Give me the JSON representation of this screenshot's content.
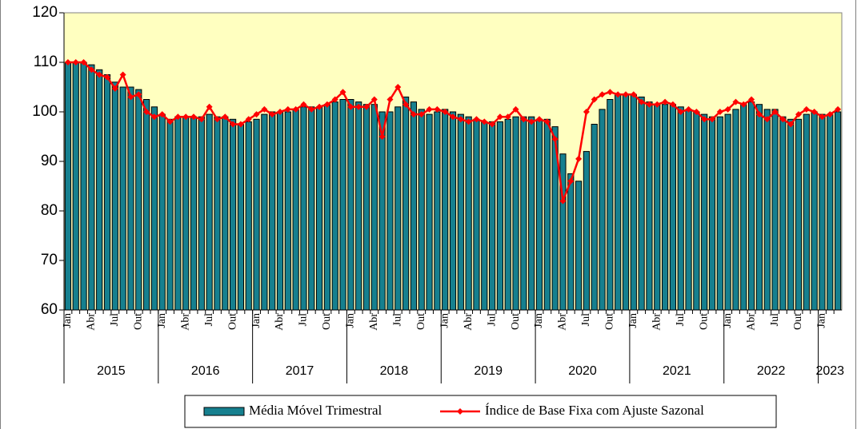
{
  "chart_data": {
    "type": "bar",
    "categories": [
      "Jan",
      null,
      null,
      "Abr",
      null,
      null,
      "Jul",
      null,
      null,
      "Out",
      null,
      null,
      "Jan",
      null,
      null,
      "Abr",
      null,
      null,
      "Jul",
      null,
      null,
      "Out",
      null,
      null,
      "Jan",
      null,
      null,
      "Abr",
      null,
      null,
      "Jul",
      null,
      null,
      "Out",
      null,
      null,
      "Jan",
      null,
      null,
      "Abr",
      null,
      null,
      "Jul",
      null,
      null,
      "Out",
      null,
      null,
      "Jan",
      null,
      null,
      "Abr",
      null,
      null,
      "Jul",
      null,
      null,
      "Out",
      null,
      null,
      "Jan",
      null,
      null,
      "Abr",
      null,
      null,
      "Jul",
      null,
      null,
      "Out",
      null,
      null,
      "Jan",
      null,
      null,
      "Abr",
      null,
      null,
      "Jul",
      null,
      null,
      "Out",
      null,
      null,
      "Jan",
      null,
      null,
      "Abr",
      null,
      null,
      "Jul",
      null,
      null,
      "Out",
      null,
      null,
      "Jan",
      null,
      null
    ],
    "year_labels": [
      "2015",
      "2016",
      "2017",
      "2018",
      "2019",
      "2020",
      "2021",
      "2022",
      "2023"
    ],
    "series": [
      {
        "name": "Média Móvel Trimestral",
        "type": "bar",
        "color": "#16808f",
        "values": [
          110,
          110,
          110,
          109.5,
          108.5,
          107.5,
          106,
          105,
          105,
          104.5,
          102.5,
          101,
          99.5,
          98.5,
          99,
          99,
          99,
          99,
          99.5,
          99,
          99,
          98.5,
          97.5,
          98,
          98.5,
          99.5,
          100,
          100,
          100,
          100.5,
          101,
          101,
          101,
          101.5,
          102,
          102.5,
          102.5,
          102,
          101.5,
          101.5,
          100,
          100,
          101,
          103,
          102,
          100.5,
          99.5,
          100,
          100.5,
          100,
          99.5,
          99,
          98.5,
          98,
          98,
          98,
          98.5,
          99,
          99,
          99,
          98.5,
          98.5,
          97,
          91.5,
          87.5,
          86,
          92,
          97.5,
          100.5,
          102.5,
          103.5,
          103.5,
          103.5,
          103,
          102,
          101.5,
          101.5,
          101.5,
          101,
          100.5,
          100,
          99.5,
          99,
          99,
          99.5,
          100.5,
          101.5,
          102,
          101.5,
          100.5,
          100.5,
          99,
          98.5,
          98.5,
          99.5,
          100,
          99.5,
          99.5,
          100
        ]
      },
      {
        "name": "Índice de Base Fixa com Ajuste Sazonal",
        "type": "line",
        "color": "#ff0000",
        "values": [
          110,
          110,
          110,
          108.5,
          107.5,
          107,
          104.7,
          107.5,
          103,
          103.5,
          100,
          99,
          99.5,
          98,
          99,
          99,
          99,
          98.5,
          101,
          98.5,
          99,
          97.5,
          97.5,
          98.5,
          99.5,
          100.5,
          99.5,
          100,
          100.5,
          100.5,
          101.5,
          100.5,
          101,
          101.5,
          102.5,
          104,
          101,
          101,
          101,
          102.5,
          95,
          102.5,
          105,
          101.5,
          99.5,
          99.5,
          100.5,
          100.5,
          100,
          99,
          98.5,
          98,
          98.5,
          98,
          97.5,
          99,
          99,
          100.5,
          98.5,
          98,
          98.5,
          98,
          94.5,
          82,
          86,
          90.5,
          100,
          102.5,
          103.5,
          104,
          103.5,
          103.5,
          103.5,
          102,
          101.5,
          101.5,
          102,
          101.5,
          100,
          100.5,
          100,
          98.5,
          98.5,
          100,
          100.5,
          102,
          101.5,
          102.5,
          99.5,
          98.5,
          100,
          98.5,
          97.5,
          99.5,
          100.5,
          100,
          99,
          99.5,
          100.5
        ]
      }
    ],
    "ylim": [
      60,
      120
    ],
    "yticks": [
      60,
      70,
      80,
      90,
      100,
      110,
      120
    ],
    "grid": false,
    "plot_background": "#ffffc0",
    "legend": "bottom"
  }
}
